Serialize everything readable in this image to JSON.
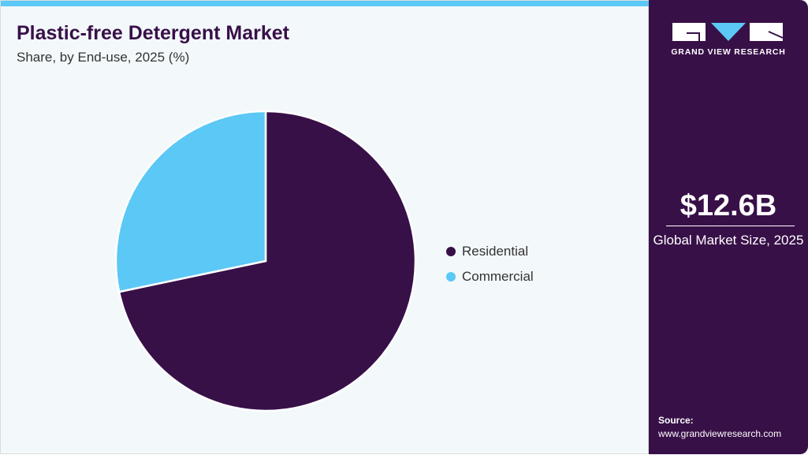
{
  "header": {
    "title": "Plastic-free Detergent Market",
    "subtitle": "Share, by End-use, 2025 (%)"
  },
  "chart_data": {
    "type": "pie",
    "title": "Plastic-free Detergent Market",
    "subtitle": "Share, by End-use, 2025 (%)",
    "categories": [
      "Residential",
      "Commercial"
    ],
    "values": [
      71.7,
      28.3
    ],
    "colors": [
      "#381048",
      "#5bc8f5"
    ],
    "legend_position": "right"
  },
  "sidebar": {
    "brand": "GRAND VIEW RESEARCH",
    "market_size": "$12.6B",
    "market_size_label": "Global Market Size, 2025",
    "source_label": "Source:",
    "source_url": "www.grandviewresearch.com"
  }
}
